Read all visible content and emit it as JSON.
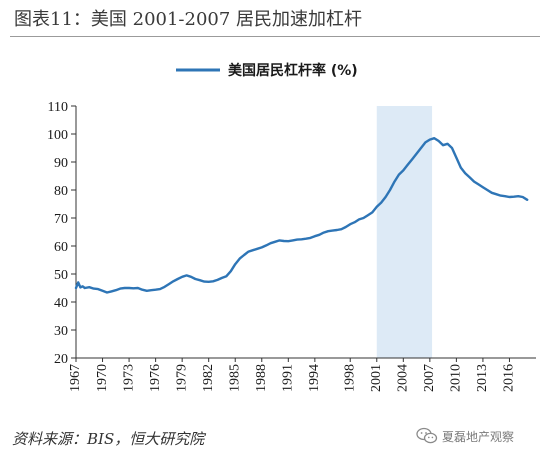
{
  "figure": {
    "title": "图表11：美国 2001-2007 居民加速加杠杆",
    "source": "资料来源：BIS，恒大研究院",
    "watermark": "夏磊地产观察"
  },
  "chart_data": {
    "type": "line",
    "title": "",
    "xlabel": "",
    "ylabel": "",
    "ylim": [
      20,
      110
    ],
    "yticks": [
      20,
      30,
      40,
      50,
      60,
      70,
      80,
      90,
      100,
      110
    ],
    "xlim": [
      1967,
      2019
    ],
    "xticks": [
      "1967",
      "1970",
      "1973",
      "1976",
      "1979",
      "1982",
      "1985",
      "1988",
      "1991",
      "1994",
      "1998",
      "2001",
      "2004",
      "2007",
      "2010",
      "2013",
      "2016"
    ],
    "legend": {
      "position": "top-center"
    },
    "grid": false,
    "shaded_region": {
      "x": [
        2001,
        2007.25
      ],
      "color": "#ddeaf6"
    },
    "colors": {
      "series": "#2e75b6",
      "shade": "#ddeaf6"
    },
    "series": [
      {
        "name": "美国居民杠杆率 (%)",
        "x": [
          1967.0,
          1967.25,
          1967.5,
          1967.75,
          1968.0,
          1968.5,
          1969.0,
          1969.5,
          1970.0,
          1970.5,
          1971.0,
          1971.5,
          1972.0,
          1972.5,
          1973.0,
          1973.5,
          1974.0,
          1974.5,
          1975.0,
          1975.5,
          1976.0,
          1976.5,
          1977.0,
          1977.5,
          1978.0,
          1978.5,
          1979.0,
          1979.5,
          1980.0,
          1980.5,
          1981.0,
          1981.5,
          1982.0,
          1982.5,
          1983.0,
          1983.5,
          1984.0,
          1984.5,
          1985.0,
          1985.5,
          1986.0,
          1986.5,
          1987.0,
          1987.5,
          1988.0,
          1988.5,
          1989.0,
          1989.5,
          1990.0,
          1990.5,
          1991.0,
          1991.5,
          1992.0,
          1992.5,
          1993.0,
          1993.5,
          1994.0,
          1994.5,
          1995.0,
          1995.5,
          1996.0,
          1996.5,
          1997.0,
          1997.5,
          1998.0,
          1998.5,
          1999.0,
          1999.5,
          2000.0,
          2000.5,
          2001.0,
          2001.5,
          2002.0,
          2002.5,
          2003.0,
          2003.5,
          2004.0,
          2004.5,
          2005.0,
          2005.5,
          2006.0,
          2006.5,
          2007.0,
          2007.5,
          2008.0,
          2008.5,
          2009.0,
          2009.5,
          2010.0,
          2010.5,
          2011.0,
          2011.5,
          2012.0,
          2012.5,
          2013.0,
          2013.5,
          2014.0,
          2014.5,
          2015.0,
          2015.5,
          2016.0,
          2016.5,
          2017.0,
          2017.5,
          2018.0
        ],
        "values": [
          45.0,
          47.0,
          45.2,
          45.6,
          45.0,
          45.3,
          44.8,
          44.6,
          44.0,
          43.4,
          43.8,
          44.2,
          44.8,
          45.0,
          45.0,
          44.9,
          45.0,
          44.4,
          44.0,
          44.2,
          44.4,
          44.6,
          45.4,
          46.4,
          47.4,
          48.2,
          49.0,
          49.5,
          49.0,
          48.2,
          47.8,
          47.3,
          47.2,
          47.4,
          47.9,
          48.6,
          49.2,
          51.0,
          53.5,
          55.5,
          56.8,
          58.0,
          58.5,
          59.0,
          59.5,
          60.2,
          61.0,
          61.5,
          62.0,
          61.8,
          61.7,
          62.0,
          62.3,
          62.4,
          62.6,
          62.9,
          63.5,
          64.0,
          64.8,
          65.3,
          65.5,
          65.7,
          66.0,
          66.8,
          67.8,
          68.5,
          69.5,
          70.0,
          71.0,
          72.0,
          74.0,
          75.5,
          77.5,
          80.0,
          83.0,
          85.5,
          87.0,
          89.0,
          91.0,
          93.0,
          95.0,
          97.0,
          98.0,
          98.5,
          97.5,
          96.0,
          96.5,
          95.0,
          91.5,
          88.0,
          86.0,
          84.5,
          83.0,
          82.0,
          81.0,
          80.0,
          79.0,
          78.5,
          78.0,
          77.8,
          77.5,
          77.6,
          77.8,
          77.5,
          76.5
        ]
      }
    ]
  }
}
